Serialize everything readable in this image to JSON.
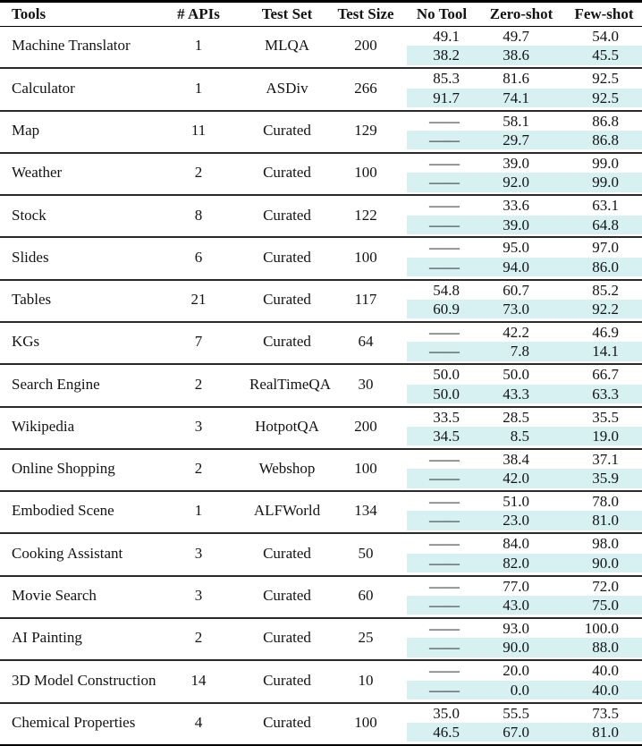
{
  "table": {
    "columns": [
      "Tools",
      "# APIs",
      "Test Set",
      "Test Size",
      "No Tool",
      "Zero-shot",
      "Few-shot"
    ],
    "colors": {
      "row_highlight": "#d7f1f2"
    },
    "rows": [
      {
        "tool": "Machine Translator",
        "apis": "1",
        "test_set": "MLQA",
        "test_size": "200",
        "no_tool": [
          "49.1",
          "38.2"
        ],
        "zero_shot": [
          "49.7",
          "38.6"
        ],
        "few_shot": [
          "54.0",
          "45.5"
        ]
      },
      {
        "tool": "Calculator",
        "apis": "1",
        "test_set": "ASDiv",
        "test_size": "266",
        "no_tool": [
          "85.3",
          "91.7"
        ],
        "zero_shot": [
          "81.6",
          "74.1"
        ],
        "few_shot": [
          "92.5",
          "92.5"
        ]
      },
      {
        "tool": "Map",
        "apis": "11",
        "test_set": "Curated",
        "test_size": "129",
        "no_tool": [
          "——",
          "——"
        ],
        "zero_shot": [
          "58.1",
          "29.7"
        ],
        "few_shot": [
          "86.8",
          "86.8"
        ]
      },
      {
        "tool": "Weather",
        "apis": "2",
        "test_set": "Curated",
        "test_size": "100",
        "no_tool": [
          "——",
          "——"
        ],
        "zero_shot": [
          "39.0",
          "92.0"
        ],
        "few_shot": [
          "99.0",
          "99.0"
        ]
      },
      {
        "tool": "Stock",
        "apis": "8",
        "test_set": "Curated",
        "test_size": "122",
        "no_tool": [
          "——",
          "——"
        ],
        "zero_shot": [
          "33.6",
          "39.0"
        ],
        "few_shot": [
          "63.1",
          "64.8"
        ]
      },
      {
        "tool": "Slides",
        "apis": "6",
        "test_set": "Curated",
        "test_size": "100",
        "no_tool": [
          "——",
          "——"
        ],
        "zero_shot": [
          "95.0",
          "94.0"
        ],
        "few_shot": [
          "97.0",
          "86.0"
        ]
      },
      {
        "tool": "Tables",
        "apis": "21",
        "test_set": "Curated",
        "test_size": "117",
        "no_tool": [
          "54.8",
          "60.9"
        ],
        "zero_shot": [
          "60.7",
          "73.0"
        ],
        "few_shot": [
          "85.2",
          "92.2"
        ]
      },
      {
        "tool": "KGs",
        "apis": "7",
        "test_set": "Curated",
        "test_size": "64",
        "no_tool": [
          "——",
          "——"
        ],
        "zero_shot": [
          "42.2",
          "7.8"
        ],
        "few_shot": [
          "46.9",
          "14.1"
        ]
      },
      {
        "tool": "Search Engine",
        "apis": "2",
        "test_set": "RealTimeQA",
        "test_size": "30",
        "no_tool": [
          "50.0",
          "50.0"
        ],
        "zero_shot": [
          "50.0",
          "43.3"
        ],
        "few_shot": [
          "66.7",
          "63.3"
        ]
      },
      {
        "tool": "Wikipedia",
        "apis": "3",
        "test_set": "HotpotQA",
        "test_size": "200",
        "no_tool": [
          "33.5",
          "34.5"
        ],
        "zero_shot": [
          "28.5",
          "8.5"
        ],
        "few_shot": [
          "35.5",
          "19.0"
        ]
      },
      {
        "tool": "Online Shopping",
        "apis": "2",
        "test_set": "Webshop",
        "test_size": "100",
        "no_tool": [
          "——",
          "——"
        ],
        "zero_shot": [
          "38.4",
          "42.0"
        ],
        "few_shot": [
          "37.1",
          "35.9"
        ]
      },
      {
        "tool": "Embodied Scene",
        "apis": "1",
        "test_set": "ALFWorld",
        "test_size": "134",
        "no_tool": [
          "——",
          "——"
        ],
        "zero_shot": [
          "51.0",
          "23.0"
        ],
        "few_shot": [
          "78.0",
          "81.0"
        ]
      },
      {
        "tool": "Cooking Assistant",
        "apis": "3",
        "test_set": "Curated",
        "test_size": "50",
        "no_tool": [
          "——",
          "——"
        ],
        "zero_shot": [
          "84.0",
          "82.0"
        ],
        "few_shot": [
          "98.0",
          "90.0"
        ]
      },
      {
        "tool": "Movie Search",
        "apis": "3",
        "test_set": "Curated",
        "test_size": "60",
        "no_tool": [
          "——",
          "——"
        ],
        "zero_shot": [
          "77.0",
          "43.0"
        ],
        "few_shot": [
          "72.0",
          "75.0"
        ]
      },
      {
        "tool": "AI Painting",
        "apis": "2",
        "test_set": "Curated",
        "test_size": "25",
        "no_tool": [
          "——",
          "——"
        ],
        "zero_shot": [
          "93.0",
          "90.0"
        ],
        "few_shot": [
          "100.0",
          "88.0"
        ]
      },
      {
        "tool": "3D Model Construction",
        "apis": "14",
        "test_set": "Curated",
        "test_size": "10",
        "no_tool": [
          "——",
          "——"
        ],
        "zero_shot": [
          "20.0",
          "0.0"
        ],
        "few_shot": [
          "40.0",
          "40.0"
        ]
      },
      {
        "tool": "Chemical Properties",
        "apis": "4",
        "test_set": "Curated",
        "test_size": "100",
        "no_tool": [
          "35.0",
          "46.5"
        ],
        "zero_shot": [
          "55.5",
          "67.0"
        ],
        "few_shot": [
          "73.5",
          "81.0"
        ]
      }
    ]
  }
}
